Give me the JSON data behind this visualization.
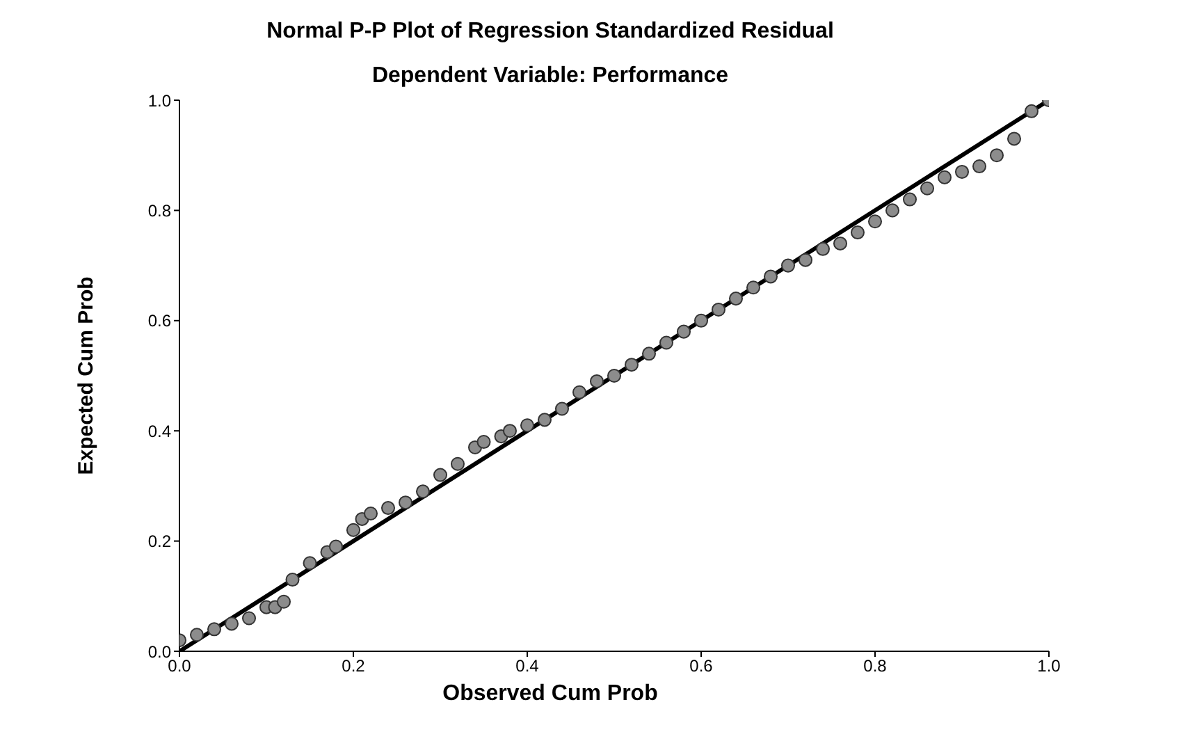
{
  "chart_data": {
    "type": "scatter",
    "title": "Normal P-P Plot of Regression Standardized Residual",
    "subtitle": "Dependent Variable: Performance",
    "xlabel": "Observed Cum Prob",
    "ylabel": "Expected Cum Prob",
    "xlim": [
      0,
      1
    ],
    "ylim": [
      0,
      1
    ],
    "xticks": [
      {
        "value": 0,
        "label": "0.0"
      },
      {
        "value": 0.2,
        "label": "0.2"
      },
      {
        "value": 0.4,
        "label": "0.4"
      },
      {
        "value": 0.6,
        "label": "0.6"
      },
      {
        "value": 0.8,
        "label": "0.8"
      },
      {
        "value": 1,
        "label": "1.0"
      }
    ],
    "yticks": [
      {
        "value": 0,
        "label": "0.0"
      },
      {
        "value": 0.2,
        "label": "0.2"
      },
      {
        "value": 0.4,
        "label": "0.4"
      },
      {
        "value": 0.6,
        "label": "0.6"
      },
      {
        "value": 0.8,
        "label": "0.8"
      },
      {
        "value": 1,
        "label": "1.0"
      }
    ],
    "marker": "circle",
    "series": [
      {
        "color": "#8c8c8c",
        "x": [
          0,
          0.02,
          0.04,
          0.06,
          0.08,
          0.1,
          0.11,
          0.12,
          0.13,
          0.15,
          0.17,
          0.18,
          0.2,
          0.21,
          0.22,
          0.24,
          0.26,
          0.28,
          0.3,
          0.32,
          0.34,
          0.35,
          0.37,
          0.38,
          0.4,
          0.42,
          0.44,
          0.46,
          0.48,
          0.5,
          0.52,
          0.54,
          0.56,
          0.58,
          0.6,
          0.62,
          0.64,
          0.66,
          0.68,
          0.7,
          0.72,
          0.74,
          0.76,
          0.78,
          0.8,
          0.82,
          0.84,
          0.86,
          0.88,
          0.9,
          0.92,
          0.94,
          0.96,
          0.98,
          1.0
        ],
        "values": [
          0.02,
          0.03,
          0.04,
          0.05,
          0.06,
          0.08,
          0.08,
          0.09,
          0.13,
          0.16,
          0.18,
          0.19,
          0.22,
          0.24,
          0.25,
          0.26,
          0.27,
          0.29,
          0.32,
          0.34,
          0.37,
          0.38,
          0.39,
          0.4,
          0.41,
          0.42,
          0.44,
          0.47,
          0.49,
          0.5,
          0.52,
          0.54,
          0.56,
          0.58,
          0.6,
          0.62,
          0.64,
          0.66,
          0.68,
          0.7,
          0.71,
          0.73,
          0.74,
          0.76,
          0.78,
          0.8,
          0.82,
          0.84,
          0.86,
          0.87,
          0.88,
          0.9,
          0.93,
          0.98,
          1.0
        ]
      },
      {
        "type": "line",
        "color": "#000000",
        "x": [
          0,
          1
        ],
        "values": [
          0,
          1
        ],
        "marker": "none"
      }
    ]
  }
}
